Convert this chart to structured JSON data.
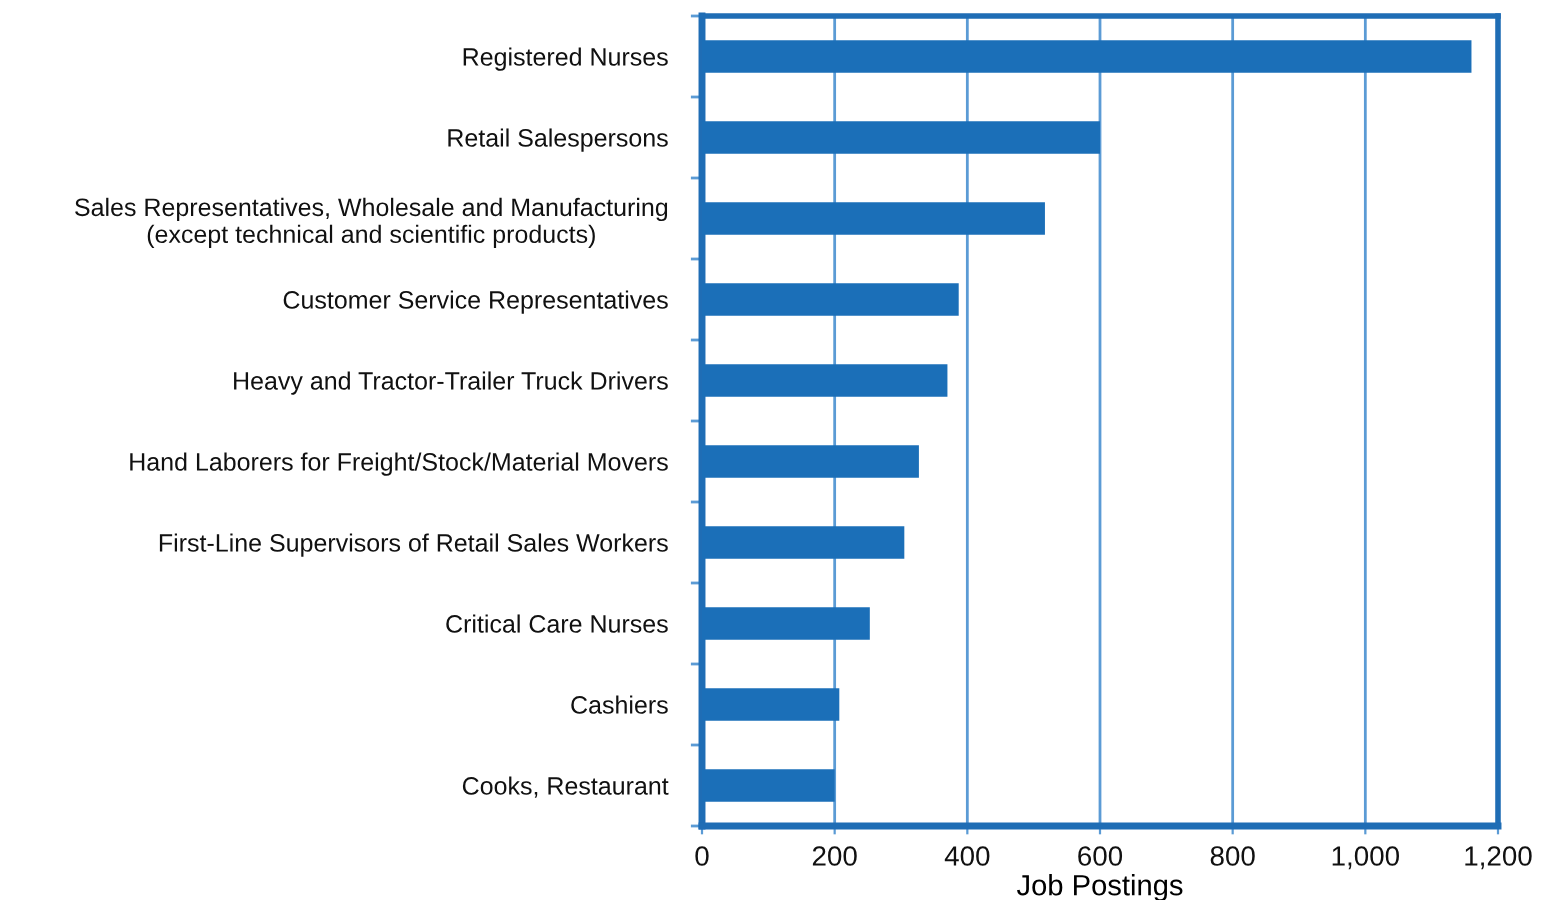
{
  "chart_data": {
    "type": "bar",
    "orientation": "horizontal",
    "xlabel": "Job Postings",
    "categories": [
      "Registered Nurses",
      "Retail Salespersons",
      "Sales Representatives, Wholesale and Manufacturing\n(except technical and scientific products)",
      "Customer Service Representatives",
      "Heavy and Tractor-Trailer Truck Drivers",
      "Hand Laborers for Freight/Stock/Material Movers",
      "First-Line Supervisors of Retail Sales Workers",
      "Critical Care Nurses",
      "Cashiers",
      "Cooks, Restaurant"
    ],
    "values": [
      1160,
      600,
      517,
      387,
      370,
      327,
      305,
      253,
      207,
      200
    ],
    "color": "#1b6fb8",
    "xlim": [
      0,
      1200
    ],
    "xticks": [
      0,
      200,
      400,
      600,
      800,
      {
        "value": 1000,
        "label": "1,000"
      },
      {
        "value": 1200,
        "label": "1,200"
      }
    ],
    "grid": "x"
  }
}
